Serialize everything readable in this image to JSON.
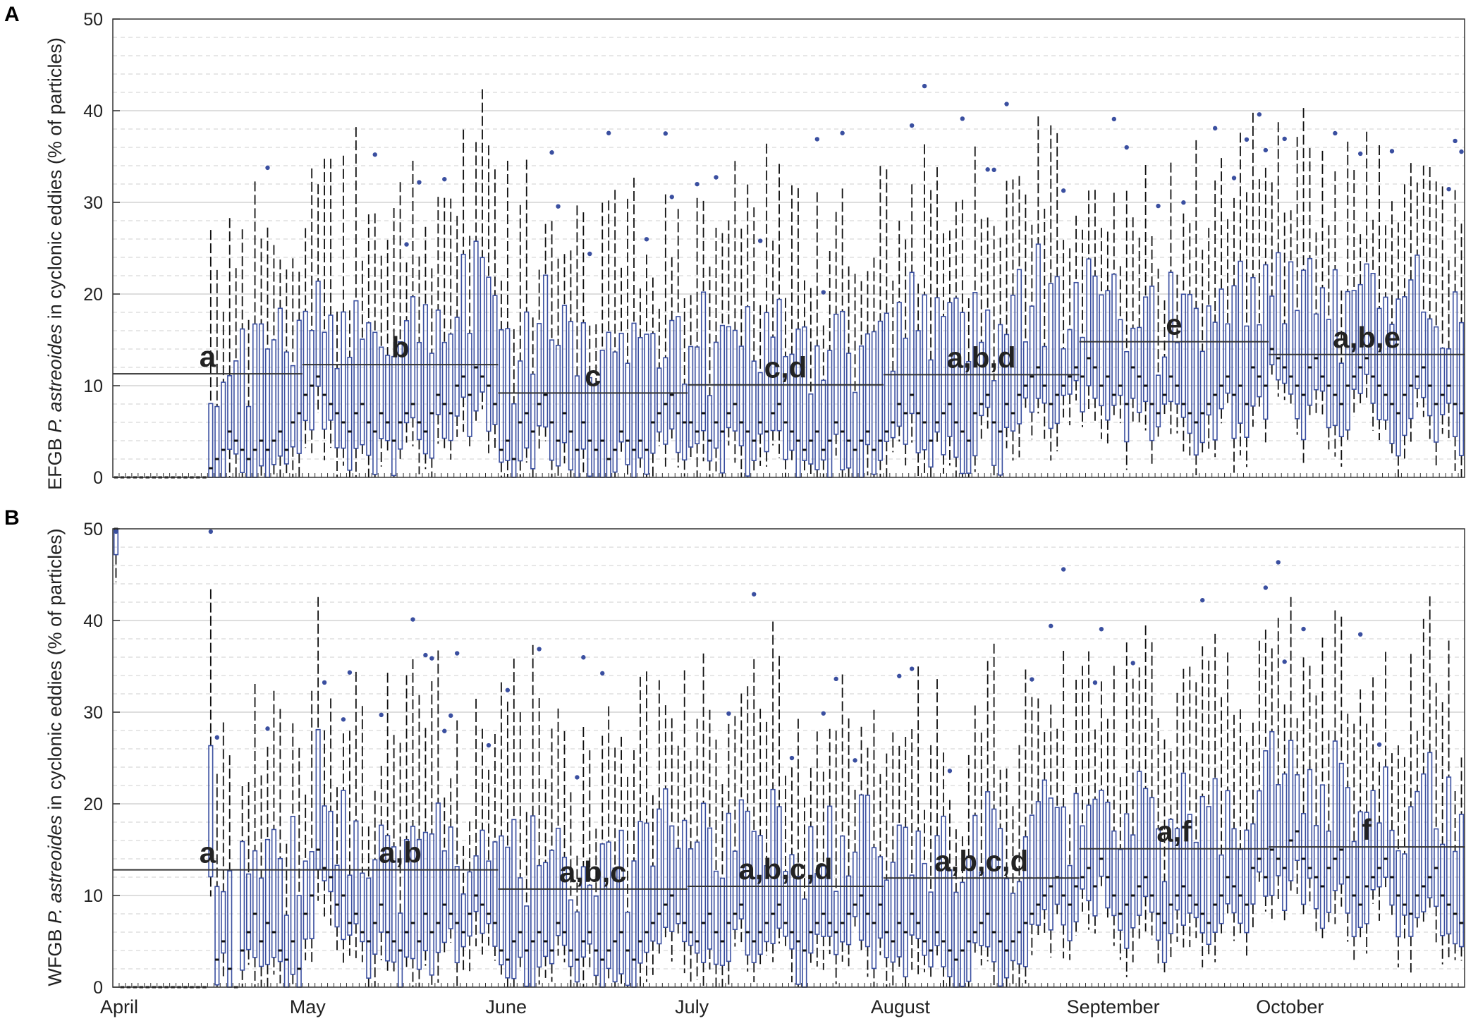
{
  "figure": {
    "month_labels": [
      "April",
      "May",
      "June",
      "July",
      "August",
      "September",
      "October"
    ]
  },
  "chart_data": [
    {
      "type": "box",
      "panel": "A",
      "ylabel_prefix": "EFGB ",
      "ylabel_species": "P. astreoides",
      "ylabel_suffix": " in cyclonic eddies (% of particles)",
      "ylim": [
        0,
        50
      ],
      "yticks": [
        0,
        10,
        20,
        30,
        40,
        50
      ],
      "x": {
        "start": "April 1",
        "days": 214,
        "tick_labels": [
          "April",
          "May",
          "June",
          "July",
          "August",
          "September",
          "October"
        ]
      },
      "grid": "major and minor horizontal",
      "box_color": "#3a4fa0",
      "daily_medians_approx": {
        "April": [
          0,
          0,
          0,
          0,
          0,
          0,
          0,
          0,
          0,
          0,
          0,
          0,
          0,
          0,
          0,
          1,
          2,
          3,
          5,
          4,
          3,
          2,
          3,
          4,
          3,
          4,
          5,
          3,
          6,
          7
        ],
        "May": [
          9,
          10,
          11,
          9,
          8,
          7,
          6,
          5,
          7,
          8,
          6,
          5,
          7,
          6,
          4,
          6,
          7,
          8,
          6,
          5,
          7,
          9,
          8,
          7,
          10,
          11,
          9,
          12,
          11,
          10,
          8
        ],
        "June": [
          3,
          4,
          2,
          6,
          7,
          5,
          8,
          9,
          6,
          4,
          7,
          5,
          3,
          6,
          4,
          3,
          4,
          2,
          3,
          5,
          4,
          3,
          4,
          3,
          6,
          7,
          8,
          9,
          7,
          6
        ],
        "July": [
          6,
          5,
          7,
          4,
          6,
          5,
          7,
          8,
          6,
          5,
          4,
          6,
          5,
          7,
          8,
          6,
          5,
          4,
          3,
          4,
          5,
          3,
          4,
          6,
          5,
          4,
          3,
          4,
          5,
          3,
          4
        ],
        "August": [
          5,
          6,
          8,
          7,
          9,
          7,
          6,
          4,
          6,
          7,
          8,
          6,
          5,
          4,
          7,
          8,
          9,
          6,
          5,
          8,
          7,
          9,
          10,
          11,
          12,
          10,
          8,
          9,
          10,
          11,
          12
        ],
        "September": [
          11,
          13,
          12,
          10,
          11,
          9,
          10,
          8,
          12,
          11,
          10,
          8,
          7,
          9,
          11,
          10,
          8,
          7,
          6,
          7,
          8,
          9,
          10,
          11,
          9,
          10,
          8,
          12,
          11,
          10
        ],
        "October": [
          14,
          13,
          12,
          11,
          10,
          9,
          12,
          13,
          11,
          10,
          9,
          8,
          10,
          11,
          12,
          13,
          11,
          10,
          9,
          8,
          7,
          9,
          10,
          11,
          12,
          10,
          8,
          9,
          10,
          8,
          7
        ]
      },
      "monthly_means": [
        {
          "month": "April",
          "mean": 11.3,
          "group": "a"
        },
        {
          "month": "May",
          "mean": 12.3,
          "group": "b"
        },
        {
          "month": "June",
          "mean": 9.2,
          "group": "c"
        },
        {
          "month": "July",
          "mean": 10.1,
          "group": "c,d"
        },
        {
          "month": "August",
          "mean": 11.2,
          "group": "a,b,d"
        },
        {
          "month": "September",
          "mean": 14.8,
          "group": "e"
        },
        {
          "month": "October",
          "mean": 13.4,
          "group": "a,b,e"
        }
      ]
    },
    {
      "type": "box",
      "panel": "B",
      "ylabel_prefix": "WFGB ",
      "ylabel_species": "P. astreoides",
      "ylabel_suffix": " in cyclonic eddies (% of particles)",
      "ylim": [
        0,
        50
      ],
      "yticks": [
        0,
        10,
        20,
        30,
        40,
        50
      ],
      "x": {
        "start": "April 1",
        "days": 214,
        "tick_labels": [
          "April",
          "May",
          "June",
          "July",
          "August",
          "September",
          "October"
        ]
      },
      "grid": "major and minor horizontal",
      "box_color": "#3a4fa0",
      "daily_medians_approx": {
        "April": [
          50,
          0,
          0,
          0,
          0,
          0,
          0,
          0,
          0,
          0,
          0,
          0,
          0,
          0,
          0,
          14,
          3,
          5,
          2,
          0,
          4,
          6,
          8,
          5,
          7,
          6,
          4,
          3,
          5,
          2
        ],
        "May": [
          8,
          10,
          15,
          13,
          12,
          9,
          10,
          7,
          8,
          6,
          5,
          7,
          9,
          6,
          5,
          4,
          6,
          7,
          5,
          8,
          6,
          7,
          9,
          8,
          7,
          6,
          8,
          10,
          9,
          8,
          7
        ],
        "June": [
          4,
          3,
          5,
          6,
          4,
          5,
          6,
          5,
          4,
          7,
          6,
          4,
          3,
          5,
          6,
          4,
          3,
          4,
          5,
          6,
          4,
          3,
          5,
          6,
          7,
          8,
          9,
          10,
          8,
          7
        ],
        "July": [
          6,
          5,
          7,
          8,
          6,
          5,
          7,
          8,
          9,
          6,
          5,
          6,
          7,
          8,
          9,
          7,
          6,
          5,
          4,
          6,
          7,
          8,
          7,
          6,
          7,
          8,
          9,
          10,
          8,
          7,
          9
        ],
        "August": [
          6,
          5,
          7,
          6,
          8,
          7,
          5,
          4,
          6,
          5,
          4,
          3,
          4,
          5,
          6,
          7,
          8,
          6,
          5,
          4,
          5,
          6,
          7,
          8,
          9,
          10,
          11,
          12,
          10,
          9,
          11
        ],
        "September": [
          12,
          13,
          11,
          14,
          12,
          10,
          8,
          9,
          10,
          11,
          12,
          10,
          8,
          7,
          9,
          10,
          11,
          10,
          9,
          8,
          7,
          9,
          10,
          12,
          11,
          10,
          9,
          13,
          14,
          12
        ],
        "October": [
          15,
          14,
          13,
          16,
          17,
          14,
          13,
          12,
          11,
          13,
          14,
          15,
          12,
          10,
          9,
          11,
          12,
          13,
          14,
          12,
          10,
          9,
          8,
          10,
          11,
          12,
          13,
          10,
          9,
          8,
          7
        ]
      },
      "monthly_means": [
        {
          "month": "April",
          "mean": 12.8,
          "group": "a"
        },
        {
          "month": "May",
          "mean": 12.8,
          "group": "a,b"
        },
        {
          "month": "June",
          "mean": 10.7,
          "group": "a,b,c"
        },
        {
          "month": "July",
          "mean": 11.0,
          "group": "a,b,c,d"
        },
        {
          "month": "August",
          "mean": 11.9,
          "group": "a,b,c,d"
        },
        {
          "month": "September",
          "mean": 15.1,
          "group": "a,f"
        },
        {
          "month": "October",
          "mean": 15.3,
          "group": "f"
        }
      ]
    }
  ]
}
